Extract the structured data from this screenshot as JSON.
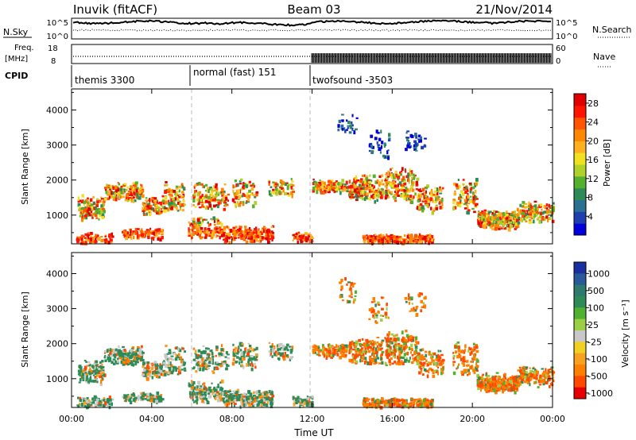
{
  "header": {
    "station": "Inuvik (fitACF)",
    "beam": "Beam 03",
    "date": "21/Nov/2014"
  },
  "strip": {
    "nsky_label": "N.Sky",
    "nsky_tick_hi": "10^5",
    "nsky_tick_lo": "10^0",
    "nsearch_label": "N.Search",
    "nsearch_tick_hi": "10^5",
    "nsearch_tick_lo": "10^0",
    "freq_label_1": "Freq.",
    "freq_label_2": "[MHz]",
    "freq_tick_hi": "18",
    "freq_tick_lo": "8",
    "nave_label": "Nave",
    "nave_tick_hi": "60",
    "nave_tick_lo": "0",
    "cpid_label": "CPID",
    "modes": [
      {
        "name": "themis 3300",
        "start_h": 0
      },
      {
        "name": "normal (fast) 151",
        "start_h": 6
      },
      {
        "name": "twofsound -3503",
        "start_h": 12
      }
    ]
  },
  "chart_data": [
    {
      "type": "heatmap",
      "name": "power",
      "ylabel": "Slant Range [km]",
      "xlabel": "Time UT",
      "x_ticks": [
        "00:00",
        "04:00",
        "08:00",
        "12:00",
        "16:00",
        "20:00",
        "00:00"
      ],
      "x_range_hours": [
        0,
        24
      ],
      "y_ticks": [
        1000,
        2000,
        3000,
        4000
      ],
      "y_range_km": [
        180,
        4600
      ],
      "colorbar": {
        "label": "Power [dB]",
        "ticks": [
          "4",
          "8",
          "12",
          "16",
          "20",
          "24",
          "28"
        ],
        "range": [
          0,
          30
        ],
        "colors": [
          "#0000dd",
          "#1e3fb0",
          "#2a7090",
          "#2e8b57",
          "#55b02e",
          "#b0d02a",
          "#f0e020",
          "#ffb020",
          "#ff8800",
          "#ff5500",
          "#ff1500",
          "#e00000"
        ]
      }
    },
    {
      "type": "heatmap",
      "name": "velocity",
      "ylabel": "Slant Range [km]",
      "xlabel": "Time UT",
      "x_ticks": [
        "00:00",
        "04:00",
        "08:00",
        "12:00",
        "16:00",
        "20:00",
        "00:00"
      ],
      "x_range_hours": [
        0,
        24
      ],
      "y_ticks": [
        1000,
        2000,
        3000,
        4000
      ],
      "y_range_km": [
        180,
        4600
      ],
      "colorbar": {
        "label": "Velocity [m s⁻¹]",
        "ticks": [
          "1000",
          "500",
          "100",
          "25",
          "-25",
          "-100",
          "-500",
          "-1000"
        ],
        "colors": [
          "#1a2fa0",
          "#2a5a9a",
          "#2e7a6e",
          "#2e8b57",
          "#50b030",
          "#9bd045",
          "#c8c8c8",
          "#f0d020",
          "#f8a020",
          "#ff8000",
          "#ff4a00",
          "#e80000"
        ]
      }
    }
  ],
  "footer": {
    "time_label": "Time UT"
  }
}
